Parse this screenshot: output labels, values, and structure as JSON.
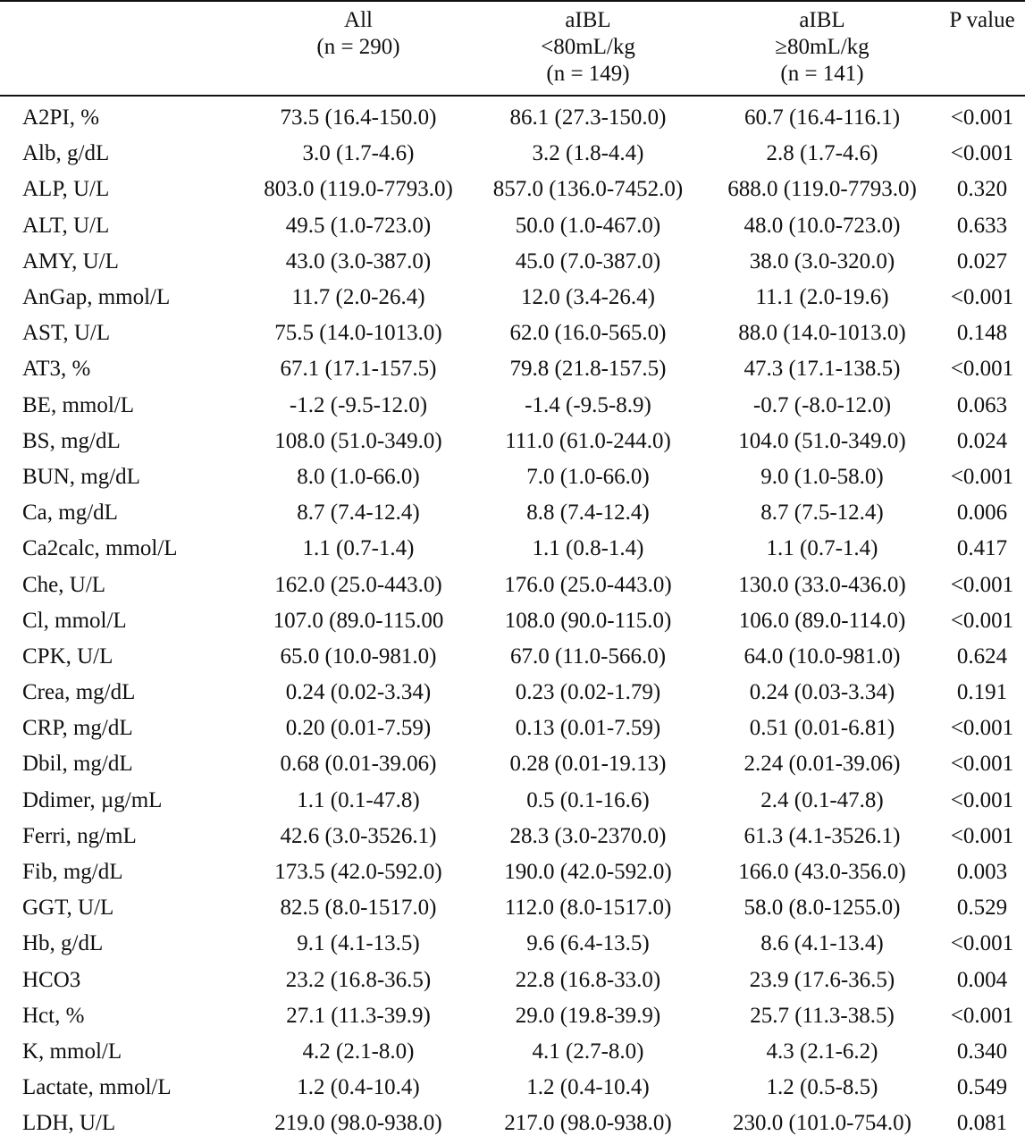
{
  "columns": [
    {
      "lines": [
        ""
      ]
    },
    {
      "lines": [
        "All",
        "(n = 290)"
      ]
    },
    {
      "lines": [
        "aIBL",
        "<80mL/kg",
        "(n = 149)"
      ]
    },
    {
      "lines": [
        "aIBL",
        "≥80mL/kg",
        "(n = 141)"
      ]
    },
    {
      "lines": [
        "P value"
      ]
    }
  ],
  "rows": [
    [
      "A2PI, %",
      "73.5 (16.4-150.0)",
      "86.1 (27.3-150.0)",
      "60.7 (16.4-116.1)",
      "<0.001"
    ],
    [
      "Alb, g/dL",
      "3.0 (1.7-4.6)",
      "3.2 (1.8-4.4)",
      "2.8 (1.7-4.6)",
      "<0.001"
    ],
    [
      "ALP, U/L",
      "803.0 (119.0-7793.0)",
      "857.0 (136.0-7452.0)",
      "688.0 (119.0-7793.0)",
      "0.320"
    ],
    [
      "ALT, U/L",
      "49.5 (1.0-723.0)",
      "50.0 (1.0-467.0)",
      "48.0 (10.0-723.0)",
      "0.633"
    ],
    [
      "AMY, U/L",
      "43.0 (3.0-387.0)",
      "45.0 (7.0-387.0)",
      "38.0 (3.0-320.0)",
      "0.027"
    ],
    [
      "AnGap, mmol/L",
      "11.7 (2.0-26.4)",
      "12.0 (3.4-26.4)",
      "11.1 (2.0-19.6)",
      "<0.001"
    ],
    [
      "AST, U/L",
      "75.5 (14.0-1013.0)",
      "62.0 (16.0-565.0)",
      "88.0 (14.0-1013.0)",
      "0.148"
    ],
    [
      "AT3, %",
      "67.1 (17.1-157.5)",
      "79.8 (21.8-157.5)",
      "47.3 (17.1-138.5)",
      "<0.001"
    ],
    [
      "BE, mmol/L",
      "-1.2 (-9.5-12.0)",
      "-1.4 (-9.5-8.9)",
      "-0.7 (-8.0-12.0)",
      "0.063"
    ],
    [
      "BS, mg/dL",
      "108.0 (51.0-349.0)",
      "111.0 (61.0-244.0)",
      "104.0 (51.0-349.0)",
      "0.024"
    ],
    [
      "BUN, mg/dL",
      "8.0 (1.0-66.0)",
      "7.0 (1.0-66.0)",
      "9.0 (1.0-58.0)",
      "<0.001"
    ],
    [
      "Ca, mg/dL",
      "8.7 (7.4-12.4)",
      "8.8 (7.4-12.4)",
      "8.7 (7.5-12.4)",
      "0.006"
    ],
    [
      "Ca2calc, mmol/L",
      "1.1 (0.7-1.4)",
      "1.1 (0.8-1.4)",
      "1.1 (0.7-1.4)",
      "0.417"
    ],
    [
      "Che, U/L",
      "162.0 (25.0-443.0)",
      "176.0 (25.0-443.0)",
      "130.0 (33.0-436.0)",
      "<0.001"
    ],
    [
      "Cl, mmol/L",
      "107.0 (89.0-115.00",
      "108.0 (90.0-115.0)",
      "106.0 (89.0-114.0)",
      "<0.001"
    ],
    [
      "CPK, U/L",
      "65.0 (10.0-981.0)",
      "67.0 (11.0-566.0)",
      "64.0 (10.0-981.0)",
      "0.624"
    ],
    [
      "Crea, mg/dL",
      "0.24 (0.02-3.34)",
      "0.23 (0.02-1.79)",
      "0.24 (0.03-3.34)",
      "0.191"
    ],
    [
      "CRP, mg/dL",
      "0.20 (0.01-7.59)",
      "0.13 (0.01-7.59)",
      "0.51 (0.01-6.81)",
      "<0.001"
    ],
    [
      "Dbil, mg/dL",
      "0.68 (0.01-39.06)",
      "0.28 (0.01-19.13)",
      "2.24 (0.01-39.06)",
      "<0.001"
    ],
    [
      "Ddimer, µg/mL",
      "1.1 (0.1-47.8)",
      "0.5 (0.1-16.6)",
      "2.4 (0.1-47.8)",
      "<0.001"
    ],
    [
      "Ferri, ng/mL",
      "42.6 (3.0-3526.1)",
      "28.3 (3.0-2370.0)",
      "61.3 (4.1-3526.1)",
      "<0.001"
    ],
    [
      "Fib, mg/dL",
      "173.5 (42.0-592.0)",
      "190.0 (42.0-592.0)",
      "166.0 (43.0-356.0)",
      "0.003"
    ],
    [
      "GGT, U/L",
      "82.5 (8.0-1517.0)",
      "112.0 (8.0-1517.0)",
      "58.0 (8.0-1255.0)",
      "0.529"
    ],
    [
      "Hb, g/dL",
      "9.1 (4.1-13.5)",
      "9.6 (6.4-13.5)",
      "8.6 (4.1-13.4)",
      "<0.001"
    ],
    [
      "HCO3",
      "23.2 (16.8-36.5)",
      "22.8 (16.8-33.0)",
      "23.9 (17.6-36.5)",
      "0.004"
    ],
    [
      "Hct, %",
      "27.1 (11.3-39.9)",
      "29.0 (19.8-39.9)",
      "25.7 (11.3-38.5)",
      "<0.001"
    ],
    [
      "K, mmol/L",
      "4.2 (2.1-8.0)",
      "4.1 (2.7-8.0)",
      "4.3 (2.1-6.2)",
      "0.340"
    ],
    [
      "Lactate, mmol/L",
      "1.2 (0.4-10.4)",
      "1.2 (0.4-10.4)",
      "1.2 (0.5-8.5)",
      "0.549"
    ],
    [
      "LDH, U/L",
      "219.0 (98.0-938.0)",
      "217.0 (98.0-938.0)",
      "230.0 (101.0-754.0)",
      "0.081"
    ]
  ]
}
